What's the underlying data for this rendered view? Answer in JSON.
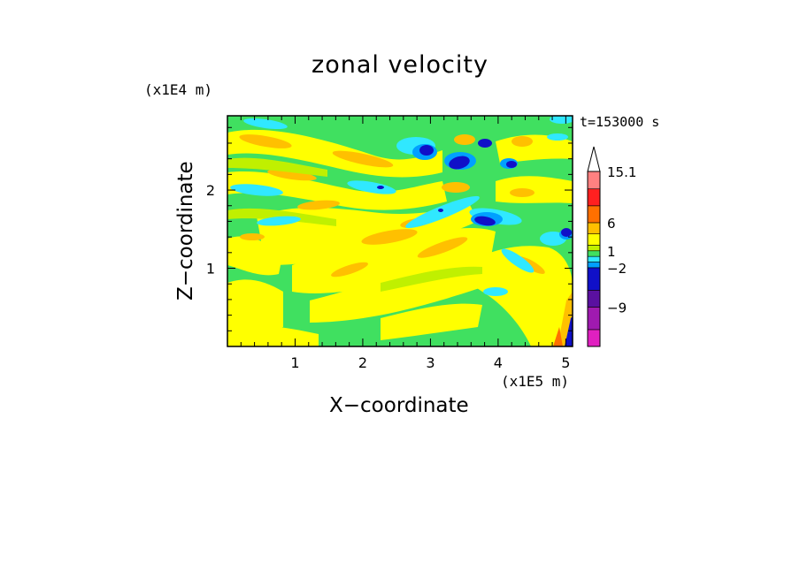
{
  "chart_data": {
    "type": "heatmap",
    "title": "zonal velocity",
    "xlabel": "X−coordinate",
    "ylabel": "Z−coordinate",
    "x_unit_label": "(x1E5 m)",
    "y_unit_label": "(x1E4 m)",
    "time_label": "t=153000 s",
    "xlim": [
      0,
      5.1
    ],
    "ylim": [
      0,
      2.95
    ],
    "x_ticks": [
      "1",
      "2",
      "3",
      "4",
      "5"
    ],
    "y_ticks": [
      "1",
      "2"
    ],
    "x_tick_values": [
      1,
      2,
      3,
      4,
      5
    ],
    "y_tick_values": [
      1,
      2
    ],
    "colorbar": {
      "labels": [
        "15.1",
        "6",
        "1",
        "−2",
        "−9"
      ],
      "label_values": [
        15.1,
        6,
        1,
        -2,
        -9
      ],
      "levels": [
        -16,
        -13,
        -9,
        -6,
        -2,
        -1,
        0,
        1,
        2,
        4,
        6,
        9,
        12,
        15.1
      ],
      "colors": [
        "#e020c0",
        "#a01ab0",
        "#5a10a0",
        "#1010c8",
        "#00a0ff",
        "#30e8ff",
        "#40e060",
        "#c0f000",
        "#ffff00",
        "#ffc000",
        "#ff7000",
        "#ff2020",
        "#ff8080",
        "#ffc0c0"
      ]
    },
    "grid": false
  }
}
